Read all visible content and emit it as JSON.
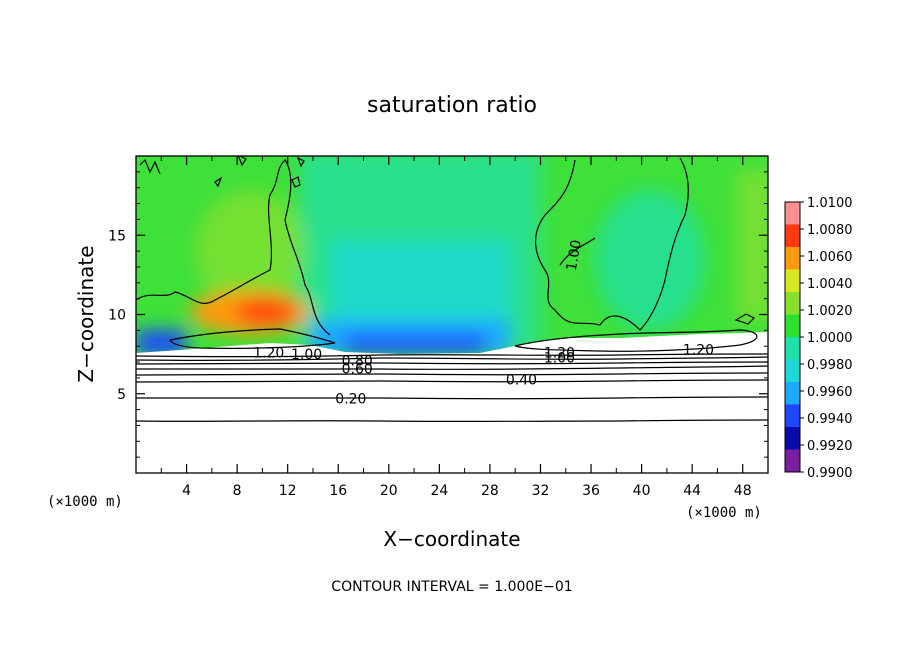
{
  "chart_data": {
    "type": "heatmap",
    "title": "saturation ratio",
    "xlabel": "X−coordinate",
    "ylabel": "Z−coordinate",
    "x_unit_label": "(×1000 m)",
    "y_unit_label": "(×1000 m)",
    "xlim": [
      0,
      50
    ],
    "ylim": [
      0,
      20
    ],
    "x_ticks": [
      4,
      8,
      12,
      16,
      20,
      24,
      28,
      32,
      36,
      40,
      44,
      48
    ],
    "y_ticks": [
      5,
      10,
      15
    ],
    "colorbar": {
      "labels": [
        "1.0100",
        "1.0080",
        "1.0060",
        "1.0040",
        "1.0020",
        "1.0000",
        "0.9980",
        "0.9960",
        "0.9940",
        "0.9920",
        "0.9900"
      ],
      "colors": [
        "#7a1fa2",
        "#0a0aa8",
        "#1e46ff",
        "#1ea8ff",
        "#1ed8d8",
        "#1ee0a8",
        "#2ee02e",
        "#8ae02e",
        "#d8e81e",
        "#ff9a10",
        "#ff3a10",
        "#ff9090"
      ]
    },
    "contour_labels": [
      {
        "text": "1.20",
        "x": 10.5,
        "y": 7.6
      },
      {
        "text": "1.00",
        "x": 13.5,
        "y": 7.5
      },
      {
        "text": "0.80",
        "x": 17.5,
        "y": 7.1
      },
      {
        "text": "0.60",
        "x": 17.5,
        "y": 6.6
      },
      {
        "text": "0.20",
        "x": 17.0,
        "y": 4.7
      },
      {
        "text": "0.40",
        "x": 30.5,
        "y": 5.9
      },
      {
        "text": "1.20",
        "x": 33.5,
        "y": 7.6
      },
      {
        "text": "1.00",
        "x": 33.5,
        "y": 7.3
      },
      {
        "text": "1.00",
        "x": 35.0,
        "y": 14.0
      },
      {
        "text": "1.20",
        "x": 44.5,
        "y": 7.8
      }
    ],
    "footer": "CONTOUR INTERVAL = 1.000E−01",
    "grid": false
  }
}
